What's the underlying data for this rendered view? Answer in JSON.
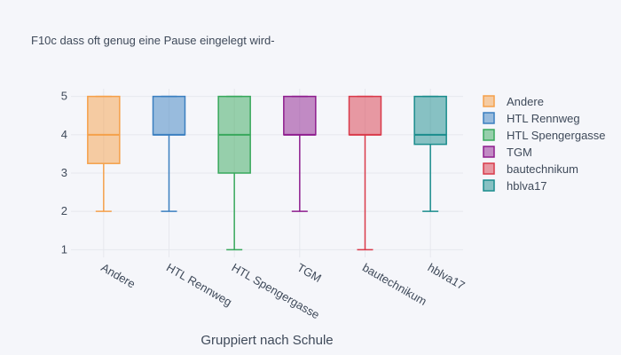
{
  "chart_data": {
    "type": "box",
    "title": "F10c dass oft genug eine Pause eingelegt wird-",
    "xlabel": "Gruppiert nach Schule",
    "ylabel": "",
    "ylim": [
      0.8,
      5.2
    ],
    "yticks": [
      1,
      2,
      3,
      4,
      5
    ],
    "categories": [
      "Andere",
      "HTL Rennweg",
      "HTL Spengergasse",
      "TGM",
      "bautechnikum",
      "hblva17"
    ],
    "series": [
      {
        "name": "Andere",
        "color": "#f5a04a",
        "min": 2,
        "q1": 3.25,
        "median": 4,
        "q3": 5,
        "max": 5
      },
      {
        "name": "HTL Rennweg",
        "color": "#3b7fc0",
        "min": 2,
        "q1": 4,
        "median": 4,
        "q3": 5,
        "max": 5
      },
      {
        "name": "HTL Spengergasse",
        "color": "#38a85c",
        "min": 1,
        "q1": 3,
        "median": 4,
        "q3": 5,
        "max": 5
      },
      {
        "name": "TGM",
        "color": "#8e1d8e",
        "min": 2,
        "q1": 4,
        "median": 4,
        "q3": 5,
        "max": 5
      },
      {
        "name": "bautechnikum",
        "color": "#d93a4a",
        "min": 1,
        "q1": 4,
        "median": 4,
        "q3": 5,
        "max": 5
      },
      {
        "name": "hblva17",
        "color": "#1a8c8c",
        "min": 2,
        "q1": 3.75,
        "median": 4,
        "q3": 5,
        "max": 5
      }
    ],
    "grid": true,
    "legend": "right"
  }
}
